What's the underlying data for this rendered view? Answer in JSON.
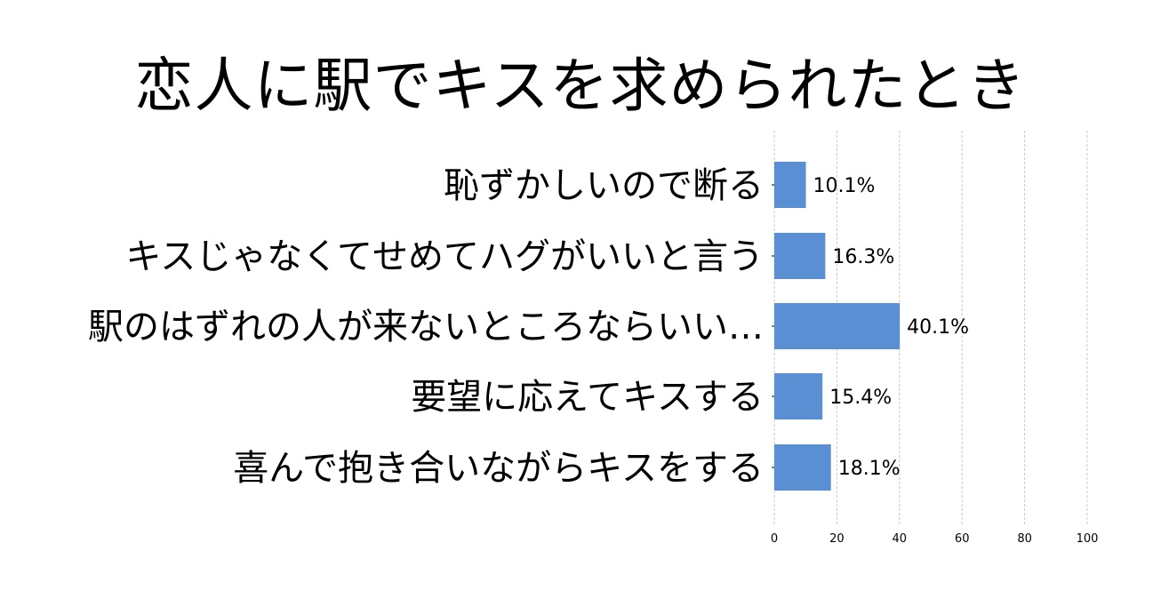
{
  "chart_data": {
    "type": "bar",
    "orientation": "horizontal",
    "title": "恋人に駅でキスを求められたとき",
    "categories": [
      "恥ずかしいので断る",
      "キスじゃなくてせめてハグがいいと言う",
      "駅のはずれの人が来ないところならいい…",
      "要望に応えてキスする",
      "喜んで抱き合いながらキスをする"
    ],
    "values": [
      10.1,
      16.3,
      40.1,
      15.4,
      18.1
    ],
    "value_labels": [
      "10.1%",
      "16.3%",
      "40.1%",
      "15.4%",
      "18.1%"
    ],
    "xlim": [
      0,
      100
    ],
    "xticks": [
      0,
      20,
      40,
      60,
      80,
      100
    ],
    "xlabel": "",
    "ylabel": "",
    "grid": "vertical dashed",
    "bar_color": "#5b8fd4"
  }
}
